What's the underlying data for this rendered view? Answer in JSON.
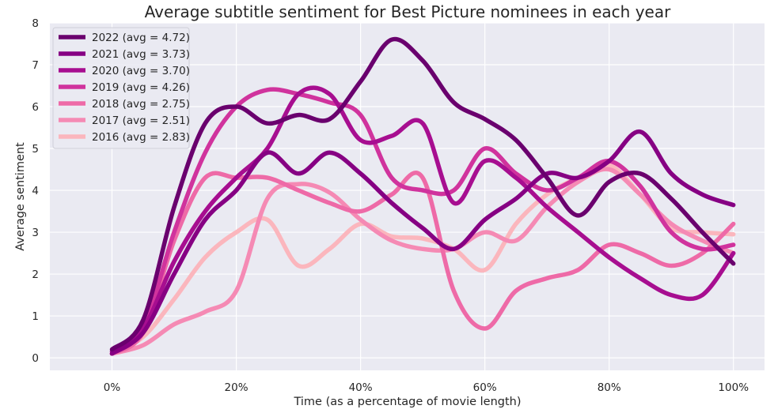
{
  "chart_data": {
    "type": "line",
    "title": "Average subtitle sentiment for Best Picture nominees in each year",
    "xlabel": "Time (as a percentage of movie length)",
    "ylabel": "Average sentiment",
    "xlim": [
      -10,
      105
    ],
    "ylim": [
      -0.3,
      8
    ],
    "x_ticks": [
      0,
      20,
      40,
      60,
      80,
      100
    ],
    "x_tick_labels": [
      "0%",
      "20%",
      "40%",
      "60%",
      "80%",
      "100%"
    ],
    "y_ticks": [
      0,
      1,
      2,
      3,
      4,
      5,
      6,
      7,
      8
    ],
    "y_tick_labels": [
      "0",
      "1",
      "2",
      "3",
      "4",
      "5",
      "6",
      "7",
      "8"
    ],
    "grid": true,
    "background": "#eaeaf2",
    "legend_position": "top-left",
    "series": [
      {
        "name": "2022 (avg = 4.72)",
        "color": "#6a006e",
        "x": [
          0,
          5,
          10,
          15,
          20,
          25,
          30,
          35,
          40,
          45,
          50,
          55,
          60,
          65,
          70,
          75,
          80,
          85,
          90,
          95,
          100
        ],
        "y": [
          0.2,
          0.9,
          3.6,
          5.6,
          6.0,
          5.6,
          5.8,
          5.7,
          6.6,
          7.6,
          7.1,
          6.1,
          5.7,
          5.2,
          4.3,
          3.4,
          4.2,
          4.4,
          3.8,
          3.0,
          2.25
        ]
      },
      {
        "name": "2021 (avg = 3.73)",
        "color": "#860083",
        "x": [
          0,
          5,
          10,
          15,
          20,
          25,
          30,
          35,
          40,
          45,
          50,
          55,
          60,
          65,
          70,
          75,
          80,
          85,
          90,
          95,
          100
        ],
        "y": [
          0.1,
          0.6,
          2.0,
          3.3,
          4.0,
          4.9,
          4.4,
          4.9,
          4.4,
          3.7,
          3.1,
          2.6,
          3.3,
          3.8,
          4.4,
          4.3,
          4.7,
          5.4,
          4.4,
          3.9,
          3.65
        ]
      },
      {
        "name": "2020 (avg = 3.70)",
        "color": "#a70e90",
        "x": [
          0,
          5,
          10,
          15,
          20,
          25,
          30,
          35,
          40,
          45,
          50,
          55,
          60,
          65,
          70,
          75,
          80,
          85,
          90,
          95,
          100
        ],
        "y": [
          0.15,
          0.7,
          2.3,
          3.5,
          4.3,
          5.0,
          6.3,
          6.3,
          5.2,
          5.3,
          5.6,
          3.7,
          4.7,
          4.3,
          3.6,
          3.0,
          2.4,
          1.9,
          1.5,
          1.5,
          2.5
        ]
      },
      {
        "name": "2019 (avg = 4.26)",
        "color": "#d0339d",
        "x": [
          0,
          5,
          10,
          15,
          20,
          25,
          30,
          35,
          40,
          45,
          50,
          55,
          60,
          65,
          70,
          75,
          80,
          85,
          90,
          95,
          100
        ],
        "y": [
          0.1,
          0.7,
          3.0,
          4.9,
          6.0,
          6.4,
          6.3,
          6.1,
          5.8,
          4.3,
          4.0,
          4.0,
          5.0,
          4.4,
          4.0,
          4.3,
          4.7,
          4.1,
          3.0,
          2.6,
          2.7
        ]
      },
      {
        "name": "2018 (avg = 2.75)",
        "color": "#ee6aa7",
        "x": [
          0,
          5,
          10,
          15,
          20,
          25,
          30,
          35,
          40,
          45,
          50,
          55,
          60,
          65,
          70,
          75,
          80,
          85,
          90,
          95,
          100
        ],
        "y": [
          0.1,
          0.6,
          2.8,
          4.3,
          4.3,
          4.3,
          4.0,
          3.7,
          3.5,
          3.9,
          4.3,
          1.6,
          0.7,
          1.6,
          1.9,
          2.1,
          2.7,
          2.5,
          2.2,
          2.5,
          3.2
        ]
      },
      {
        "name": "2017 (avg = 2.51)",
        "color": "#f58ab4",
        "x": [
          0,
          5,
          10,
          15,
          20,
          25,
          30,
          35,
          40,
          45,
          50,
          55,
          60,
          65,
          70,
          75,
          80,
          85,
          90,
          95,
          100
        ],
        "y": [
          0.1,
          0.3,
          0.8,
          1.1,
          1.6,
          3.8,
          4.15,
          3.95,
          3.3,
          2.8,
          2.6,
          2.6,
          3.0,
          2.8,
          3.6,
          4.2,
          4.5,
          3.9,
          3.2,
          2.8,
          2.5
        ]
      },
      {
        "name": "2016 (avg = 2.83)",
        "color": "#fbb6bd",
        "x": [
          0,
          5,
          10,
          15,
          20,
          25,
          30,
          35,
          40,
          45,
          50,
          55,
          60,
          65,
          70,
          75,
          80,
          85,
          90,
          95,
          100
        ],
        "y": [
          0.1,
          0.5,
          1.4,
          2.4,
          3.0,
          3.3,
          2.2,
          2.6,
          3.2,
          2.9,
          2.85,
          2.6,
          2.1,
          3.2,
          3.9,
          4.3,
          4.6,
          3.9,
          3.1,
          3.0,
          2.95
        ]
      }
    ]
  }
}
